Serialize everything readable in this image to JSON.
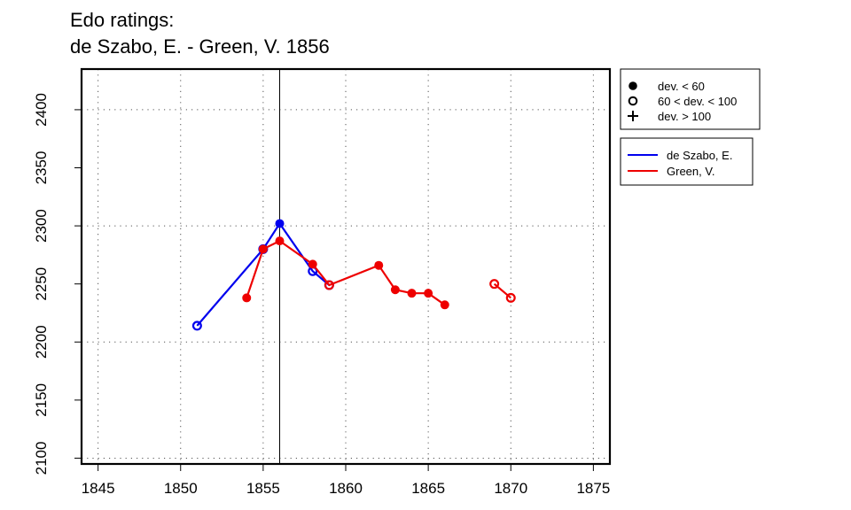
{
  "chart_data": {
    "type": "line",
    "title": "Edo ratings:",
    "subtitle": "de Szabo, E. - Green, V. 1856",
    "xlabel": "",
    "ylabel": "",
    "xlim": [
      1844,
      1876
    ],
    "ylim": [
      2095,
      2435
    ],
    "x_ticks": [
      1845,
      1850,
      1855,
      1860,
      1865,
      1870,
      1875
    ],
    "y_ticks": [
      2100,
      2150,
      2200,
      2250,
      2300,
      2350,
      2400
    ],
    "grid": true,
    "marker_year": 1856,
    "series": [
      {
        "name": "de Szabo, E.",
        "color": "#0000ee",
        "points": [
          {
            "x": 1851,
            "y": 2214,
            "marker": "open"
          },
          {
            "x": 1855,
            "y": 2280,
            "marker": "open"
          },
          {
            "x": 1856,
            "y": 2302,
            "marker": "filled"
          },
          {
            "x": 1858,
            "y": 2261,
            "marker": "open"
          },
          {
            "x": 1859,
            "y": 2249,
            "marker": "open"
          }
        ],
        "segments": [
          [
            0,
            4
          ]
        ]
      },
      {
        "name": "Green, V.",
        "color": "#ee0000",
        "points": [
          {
            "x": 1854,
            "y": 2238,
            "marker": "filled"
          },
          {
            "x": 1855,
            "y": 2280,
            "marker": "filled"
          },
          {
            "x": 1856,
            "y": 2287,
            "marker": "filled"
          },
          {
            "x": 1858,
            "y": 2267,
            "marker": "filled"
          },
          {
            "x": 1859,
            "y": 2249,
            "marker": "open"
          },
          {
            "x": 1862,
            "y": 2266,
            "marker": "filled"
          },
          {
            "x": 1863,
            "y": 2245,
            "marker": "filled"
          },
          {
            "x": 1864,
            "y": 2242,
            "marker": "filled"
          },
          {
            "x": 1865,
            "y": 2242,
            "marker": "filled"
          },
          {
            "x": 1866,
            "y": 2232,
            "marker": "filled"
          },
          {
            "x": 1869,
            "y": 2250,
            "marker": "open"
          },
          {
            "x": 1870,
            "y": 2238,
            "marker": "open"
          }
        ],
        "segments": [
          [
            0,
            9
          ],
          [
            10,
            11
          ]
        ]
      }
    ],
    "legend_markers": {
      "placement": "right",
      "items": [
        {
          "symbol": "filled",
          "label": "dev. < 60"
        },
        {
          "symbol": "open",
          "label": "60 < dev. < 100"
        },
        {
          "symbol": "plus",
          "label": "dev. > 100"
        }
      ]
    },
    "legend_series": {
      "placement": "right",
      "items": [
        "de Szabo, E.",
        "Green, V."
      ]
    }
  }
}
